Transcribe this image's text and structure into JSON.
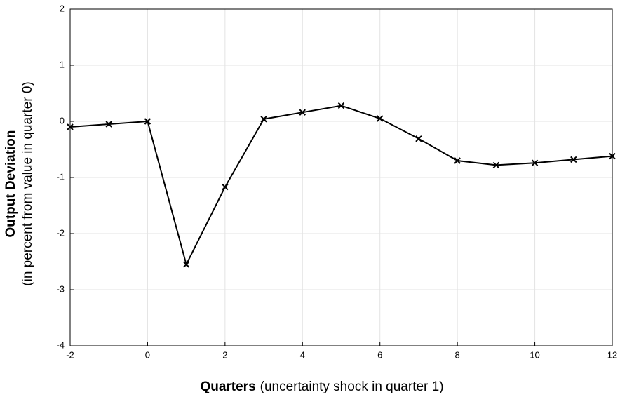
{
  "chart_data": {
    "type": "line",
    "ylabel": {
      "bold": "Output Deviation",
      "sub": "(in percent from value in quarter 0)"
    },
    "xlabel": {
      "bold": "Quarters",
      "rest": "(uncertainty shock in quarter 1)"
    },
    "x": [
      -2,
      -1,
      0,
      1,
      2,
      3,
      4,
      5,
      6,
      7,
      8,
      9,
      10,
      11,
      12
    ],
    "series": [
      {
        "color": "#000000",
        "marker": "x",
        "values": [
          -0.1,
          -0.05,
          0,
          -2.55,
          -1.17,
          0.04,
          0.16,
          0.28,
          0.05,
          -0.31,
          -0.7,
          -0.78,
          -0.74,
          -0.68,
          -0.62
        ]
      }
    ],
    "xlim": [
      -2,
      12
    ],
    "xticks": [
      -2,
      0,
      2,
      4,
      6,
      8,
      10,
      12
    ],
    "ylim": [
      -4,
      2
    ],
    "yticks": [
      -4,
      -3,
      -2,
      -1,
      0,
      1,
      2
    ],
    "grid": true
  }
}
